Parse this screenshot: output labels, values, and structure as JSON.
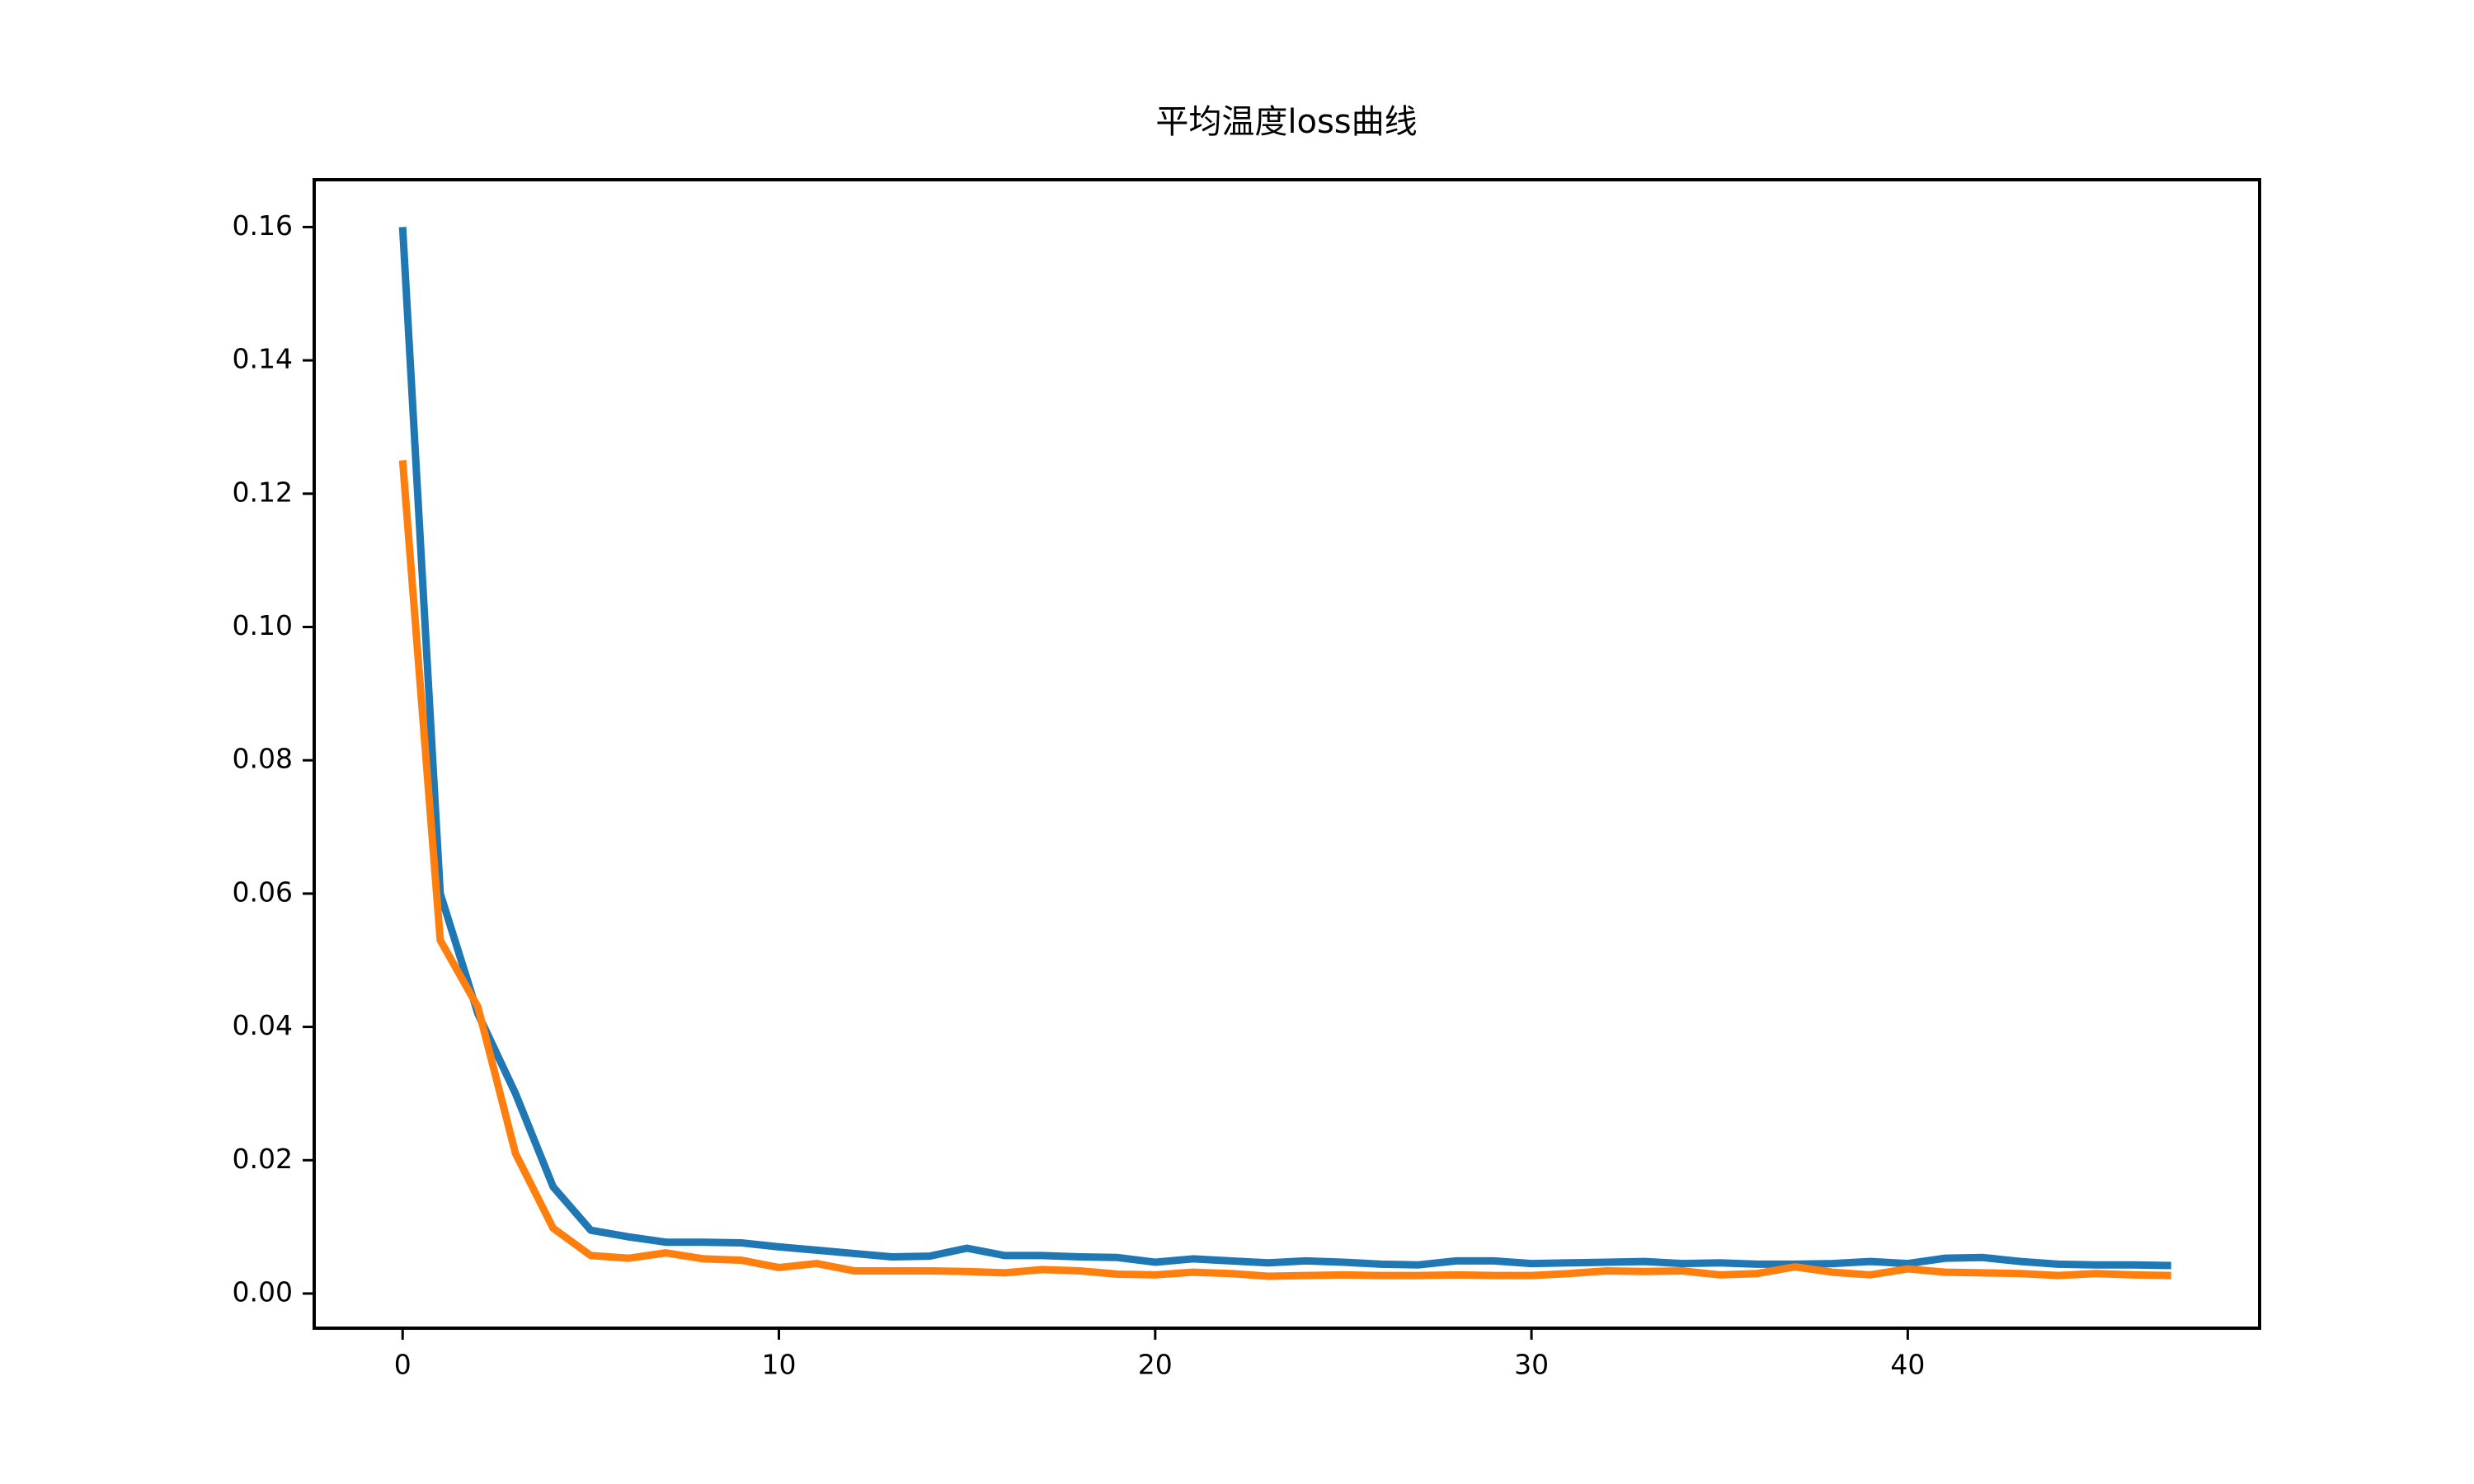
{
  "chart_data": {
    "type": "line",
    "title": "平均温度loss曲线",
    "x": [
      0,
      1,
      2,
      3,
      4,
      5,
      6,
      7,
      8,
      9,
      10,
      11,
      12,
      13,
      14,
      15,
      16,
      17,
      18,
      19,
      20,
      21,
      22,
      23,
      24,
      25,
      26,
      27,
      28,
      29,
      30,
      31,
      32,
      33,
      34,
      35,
      36,
      37,
      38,
      39,
      40,
      41,
      42,
      43,
      44,
      45,
      46,
      47
    ],
    "series": [
      {
        "color": "#1f77b4",
        "values": [
          0.16,
          0.06,
          0.042,
          0.03,
          0.016,
          0.0095,
          0.0085,
          0.0077,
          0.0077,
          0.0076,
          0.007,
          0.0065,
          0.006,
          0.0055,
          0.0056,
          0.0068,
          0.0057,
          0.0057,
          0.0055,
          0.0054,
          0.0047,
          0.0052,
          0.0049,
          0.0046,
          0.0049,
          0.0047,
          0.0044,
          0.0043,
          0.0049,
          0.0049,
          0.0045,
          0.0046,
          0.0047,
          0.0048,
          0.0045,
          0.0046,
          0.0044,
          0.0044,
          0.0045,
          0.0048,
          0.0045,
          0.0053,
          0.0054,
          0.0048,
          0.0044,
          0.0043,
          0.0043,
          0.0042
        ]
      },
      {
        "color": "#ff7f0e",
        "values": [
          0.125,
          0.053,
          0.043,
          0.021,
          0.0098,
          0.0057,
          0.0053,
          0.0061,
          0.0052,
          0.005,
          0.0039,
          0.0045,
          0.0034,
          0.0034,
          0.0034,
          0.0033,
          0.0031,
          0.0036,
          0.0034,
          0.0029,
          0.0028,
          0.0032,
          0.003,
          0.0026,
          0.0027,
          0.0028,
          0.0027,
          0.0027,
          0.0028,
          0.0027,
          0.0027,
          0.003,
          0.0034,
          0.0033,
          0.0034,
          0.0028,
          0.003,
          0.004,
          0.0032,
          0.0028,
          0.0037,
          0.0032,
          0.0031,
          0.003,
          0.0027,
          0.003,
          0.0028,
          0.0027
        ]
      }
    ],
    "xlim": [
      -2.35,
      49.35
    ],
    "xticks": [
      0,
      10,
      20,
      30,
      40
    ],
    "ylim": [
      -0.0052,
      0.1671
    ],
    "yticks": [
      {
        "value": 0,
        "label": "0.00"
      },
      {
        "value": 0.02,
        "label": "0.02"
      },
      {
        "value": 0.04,
        "label": "0.04"
      },
      {
        "value": 0.06,
        "label": "0.06"
      },
      {
        "value": 0.08,
        "label": "0.08"
      },
      {
        "value": 0.1,
        "label": "0.10"
      },
      {
        "value": 0.12,
        "label": "0.12"
      },
      {
        "value": 0.14,
        "label": "0.14"
      },
      {
        "value": 0.16,
        "label": "0.16"
      }
    ],
    "grid": false
  }
}
